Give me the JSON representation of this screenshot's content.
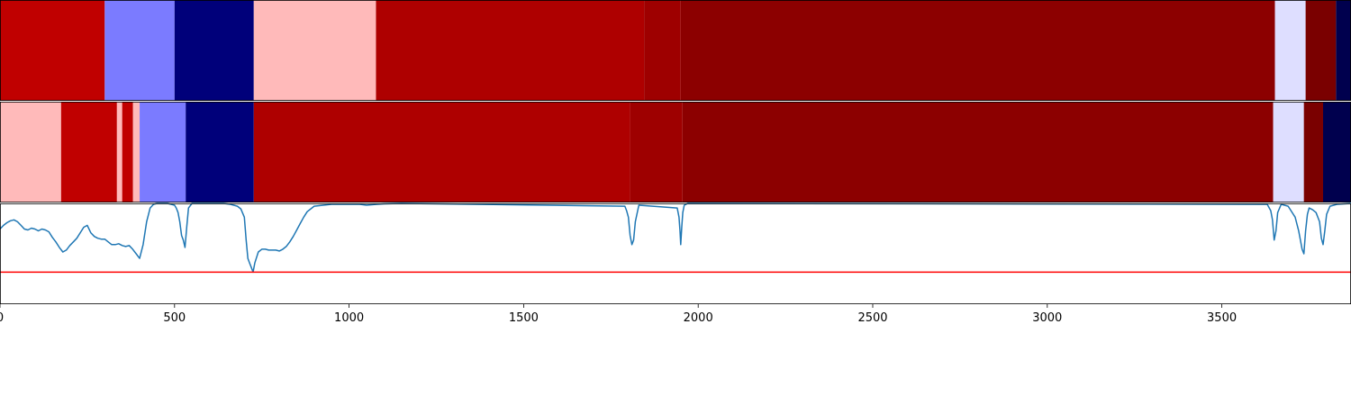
{
  "chart_data": [
    {
      "type": "heatmap",
      "xlim": [
        0,
        3870
      ],
      "segments": [
        {
          "start": 0,
          "end": 300,
          "color": "#c00000"
        },
        {
          "start": 300,
          "end": 500,
          "color": "#7b7bff"
        },
        {
          "start": 500,
          "end": 727,
          "color": "#00007a"
        },
        {
          "start": 727,
          "end": 1077,
          "color": "#ffbaba"
        },
        {
          "start": 1077,
          "end": 1845,
          "color": "#ae0000"
        },
        {
          "start": 1845,
          "end": 1950,
          "color": "#9e0000"
        },
        {
          "start": 1950,
          "end": 3652,
          "color": "#8c0000"
        },
        {
          "start": 3652,
          "end": 3740,
          "color": "#dedeff"
        },
        {
          "start": 3740,
          "end": 3827,
          "color": "#7a0000"
        },
        {
          "start": 3827,
          "end": 3870,
          "color": "#00004e"
        }
      ]
    },
    {
      "type": "heatmap",
      "xlim": [
        0,
        3870
      ],
      "segments": [
        {
          "start": 0,
          "end": 175,
          "color": "#ffbaba"
        },
        {
          "start": 175,
          "end": 335,
          "color": "#c00000"
        },
        {
          "start": 335,
          "end": 350,
          "color": "#ffbaba"
        },
        {
          "start": 350,
          "end": 381,
          "color": "#c00000"
        },
        {
          "start": 381,
          "end": 400,
          "color": "#ffbaba"
        },
        {
          "start": 400,
          "end": 532,
          "color": "#7b7bff"
        },
        {
          "start": 532,
          "end": 727,
          "color": "#00007a"
        },
        {
          "start": 727,
          "end": 1805,
          "color": "#ae0000"
        },
        {
          "start": 1805,
          "end": 1955,
          "color": "#9e0000"
        },
        {
          "start": 1955,
          "end": 3647,
          "color": "#8c0000"
        },
        {
          "start": 3647,
          "end": 3735,
          "color": "#dedeff"
        },
        {
          "start": 3735,
          "end": 3790,
          "color": "#7a0000"
        },
        {
          "start": 3790,
          "end": 3870,
          "color": "#00004e"
        }
      ]
    },
    {
      "type": "line",
      "xlim": [
        0,
        3870
      ],
      "ylim": [
        -0.1,
        1.0
      ],
      "xticks": [
        0,
        500,
        1000,
        1500,
        2000,
        2500,
        3000,
        3500
      ],
      "xtick_labels": [
        "0",
        "500",
        "1000",
        "1500",
        "2000",
        "2500",
        "3000",
        "3500"
      ],
      "series": [
        {
          "color": "#1f77b4",
          "x": [
            0,
            10,
            20,
            30,
            40,
            50,
            60,
            70,
            80,
            90,
            100,
            110,
            120,
            130,
            140,
            150,
            160,
            170,
            180,
            190,
            200,
            210,
            220,
            230,
            240,
            250,
            260,
            270,
            280,
            290,
            300,
            310,
            320,
            330,
            340,
            350,
            360,
            370,
            380,
            390,
            400,
            410,
            420,
            430,
            440,
            450,
            460,
            480,
            500,
            505,
            510,
            515,
            520,
            525,
            530,
            535,
            540,
            550,
            560,
            580,
            600,
            620,
            640,
            660,
            680,
            690,
            700,
            705,
            710,
            715,
            720,
            725,
            730,
            740,
            750,
            760,
            770,
            780,
            790,
            800,
            810,
            820,
            830,
            840,
            850,
            860,
            870,
            880,
            900,
            950,
            1000,
            1030,
            1050,
            1080,
            1100,
            1150,
            1790,
            1795,
            1800,
            1805,
            1810,
            1815,
            1820,
            1830,
            1940,
            1945,
            1948,
            1950,
            1953,
            1956,
            1960,
            1970,
            3630,
            3640,
            3645,
            3650,
            3655,
            3660,
            3670,
            3690,
            3710,
            3720,
            3730,
            3735,
            3740,
            3745,
            3750,
            3760,
            3770,
            3780,
            3785,
            3790,
            3795,
            3800,
            3810,
            3830,
            3870
          ],
          "y": [
            0.72,
            0.76,
            0.79,
            0.81,
            0.82,
            0.8,
            0.76,
            0.72,
            0.71,
            0.73,
            0.72,
            0.7,
            0.72,
            0.71,
            0.69,
            0.63,
            0.58,
            0.52,
            0.47,
            0.49,
            0.54,
            0.58,
            0.62,
            0.68,
            0.74,
            0.76,
            0.68,
            0.64,
            0.62,
            0.61,
            0.61,
            0.58,
            0.55,
            0.55,
            0.56,
            0.54,
            0.53,
            0.54,
            0.5,
            0.45,
            0.4,
            0.55,
            0.8,
            0.95,
            0.99,
            1.0,
            1.0,
            1.0,
            0.98,
            0.95,
            0.9,
            0.8,
            0.65,
            0.6,
            0.52,
            0.75,
            0.95,
            1.0,
            1.0,
            1.0,
            1.0,
            1.0,
            1.0,
            0.99,
            0.97,
            0.94,
            0.85,
            0.6,
            0.4,
            0.35,
            0.3,
            0.25,
            0.35,
            0.47,
            0.5,
            0.5,
            0.49,
            0.49,
            0.49,
            0.48,
            0.5,
            0.53,
            0.58,
            0.64,
            0.71,
            0.78,
            0.85,
            0.91,
            0.97,
            0.99,
            0.99,
            0.99,
            0.98,
            0.99,
            0.995,
            1.0,
            0.97,
            0.92,
            0.85,
            0.65,
            0.55,
            0.6,
            0.8,
            0.98,
            0.95,
            0.85,
            0.7,
            0.55,
            0.75,
            0.9,
            0.98,
            1.0,
            0.99,
            0.92,
            0.82,
            0.6,
            0.7,
            0.9,
            0.99,
            0.97,
            0.85,
            0.7,
            0.5,
            0.45,
            0.7,
            0.88,
            0.95,
            0.93,
            0.9,
            0.8,
            0.62,
            0.55,
            0.7,
            0.88,
            0.97,
            0.99,
            1.0
          ]
        },
        {
          "color": "#ff0000",
          "x": [
            0,
            3870
          ],
          "y": [
            0.25,
            0.25
          ]
        }
      ]
    }
  ]
}
